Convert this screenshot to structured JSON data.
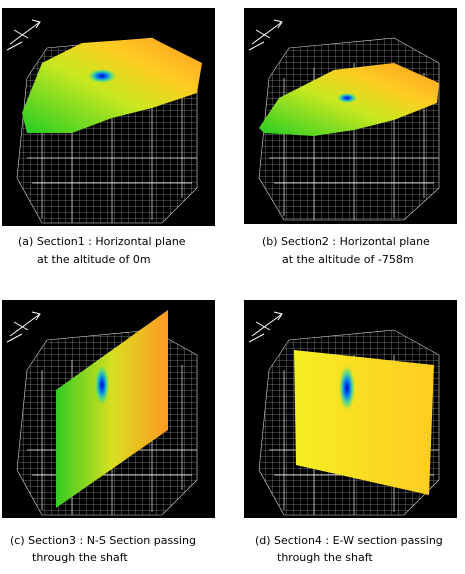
{
  "panels": [
    {
      "caption": [
        "(a) Section1 : Horizontal plane",
        "at the altitude of 0m"
      ]
    },
    {
      "caption": [
        "(b) Section2 : Horizontal plane",
        "at the altitude of -758m"
      ]
    },
    {
      "caption": [
        "(c) Section3 : N-S Section passing",
        "through the shaft"
      ]
    },
    {
      "caption": [
        "(d) Section4 : E-W section passing",
        "through the shaft"
      ]
    }
  ]
}
